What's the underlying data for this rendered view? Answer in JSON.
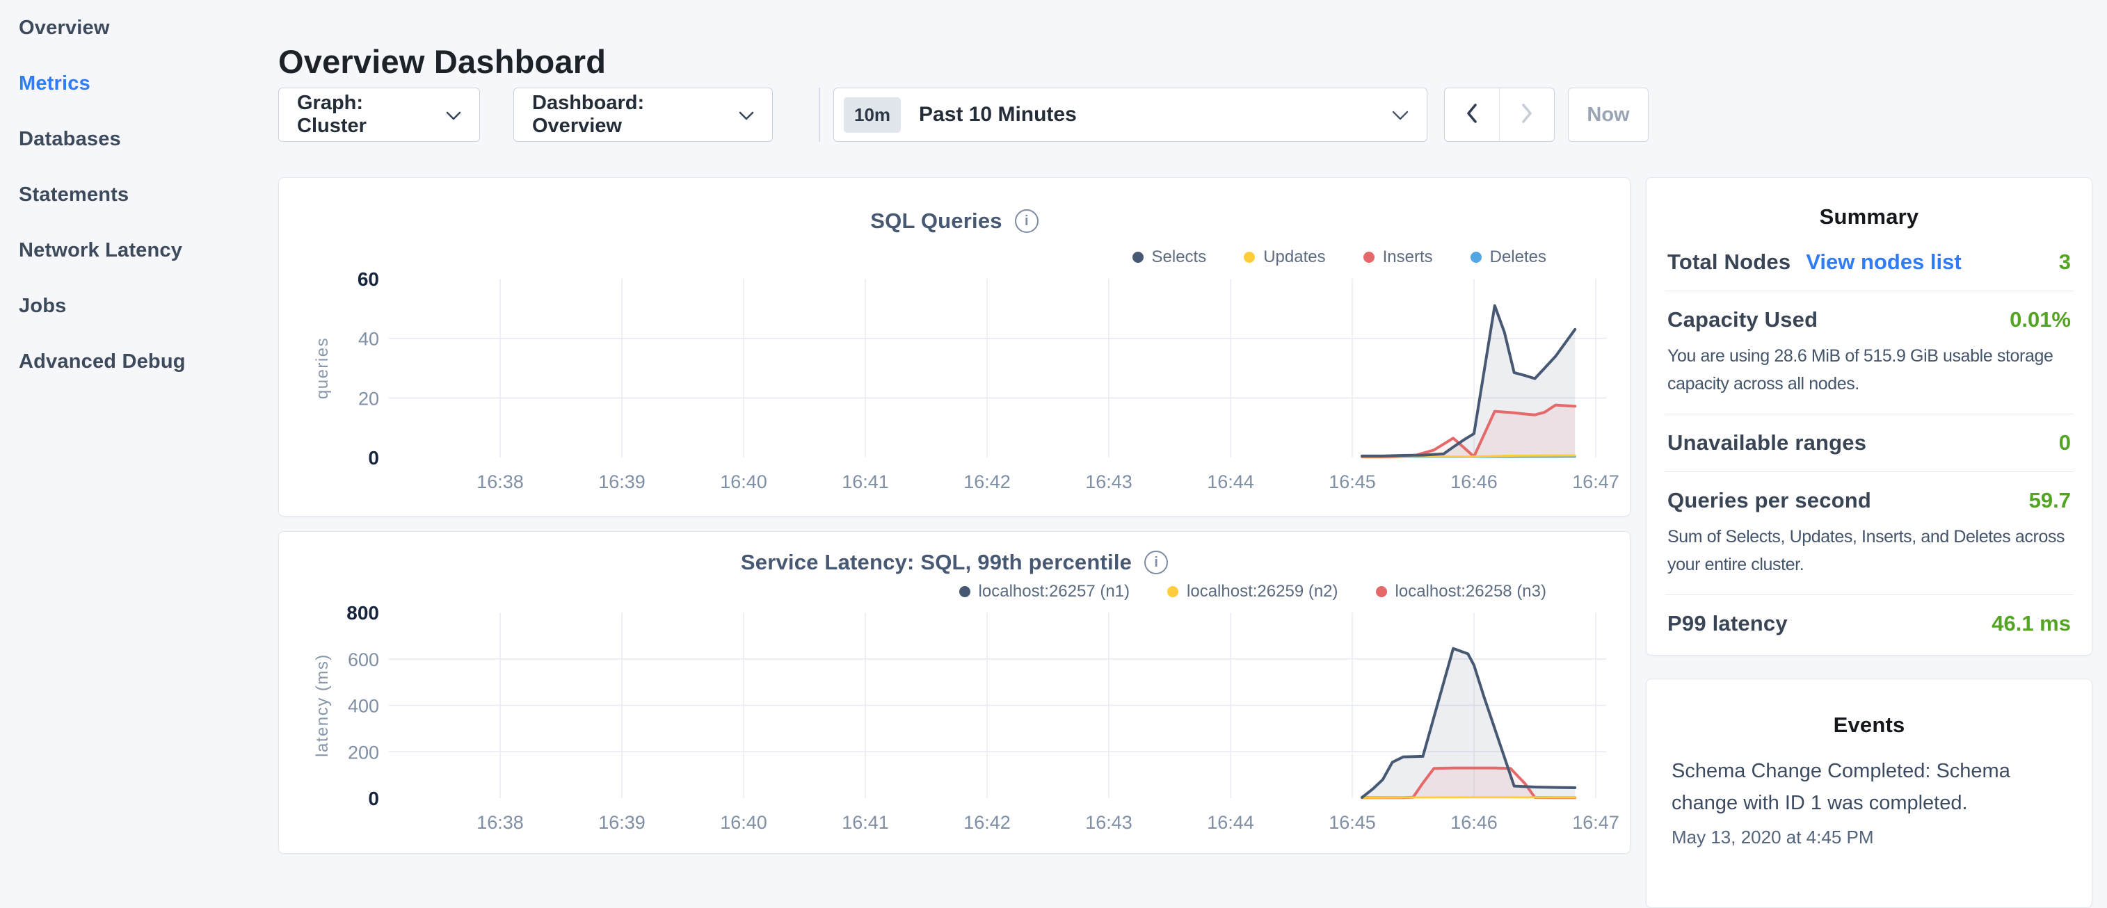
{
  "sidebar": {
    "items": [
      {
        "label": "Overview",
        "active": false
      },
      {
        "label": "Metrics",
        "active": true
      },
      {
        "label": "Databases",
        "active": false
      },
      {
        "label": "Statements",
        "active": false
      },
      {
        "label": "Network Latency",
        "active": false
      },
      {
        "label": "Jobs",
        "active": false
      },
      {
        "label": "Advanced Debug",
        "active": false
      }
    ]
  },
  "header": {
    "title": "Overview Dashboard"
  },
  "controls": {
    "graph_selector_label": "Graph: Cluster",
    "dashboard_selector_label": "Dashboard: Overview",
    "time_picker": {
      "badge": "10m",
      "label": "Past 10 Minutes"
    },
    "now_label": "Now"
  },
  "colors": {
    "accent_blue": "#2f7cf6",
    "value_green": "#54a423",
    "series_navy": "#475872",
    "series_yellow": "#ffcd3c",
    "series_red": "#e5696b",
    "series_blue": "#51a6e3"
  },
  "chart_data": [
    {
      "type": "area",
      "title": "SQL Queries",
      "ylabel": "queries",
      "ylim": [
        0,
        60
      ],
      "yticks": [
        0,
        20,
        40,
        60
      ],
      "xticks": [
        {
          "m": 38,
          "label": "16:38"
        },
        {
          "m": 39,
          "label": "16:39"
        },
        {
          "m": 40,
          "label": "16:40"
        },
        {
          "m": 41,
          "label": "16:41"
        },
        {
          "m": 42,
          "label": "16:42"
        },
        {
          "m": 43,
          "label": "16:43"
        },
        {
          "m": 44,
          "label": "16:44"
        },
        {
          "m": 45,
          "label": "16:45"
        },
        {
          "m": 46,
          "label": "16:46"
        },
        {
          "m": 47,
          "label": "16:47"
        }
      ],
      "legend_position": "top-right",
      "grid": true,
      "series": [
        {
          "name": "Selects",
          "color": "#475872",
          "fill": "rgba(71,88,114,0.10)",
          "width": 4,
          "points": [
            [
              45.08,
              0.5
            ],
            [
              45.25,
              0.5
            ],
            [
              45.42,
              0.7
            ],
            [
              45.58,
              0.8
            ],
            [
              45.75,
              1.2
            ],
            [
              45.83,
              3.5
            ],
            [
              45.92,
              6
            ],
            [
              46.0,
              8
            ],
            [
              46.17,
              51
            ],
            [
              46.25,
              42
            ],
            [
              46.33,
              28.5
            ],
            [
              46.42,
              27.5
            ],
            [
              46.5,
              26.5
            ],
            [
              46.58,
              30
            ],
            [
              46.67,
              34
            ],
            [
              46.75,
              38.5
            ],
            [
              46.83,
              43
            ]
          ]
        },
        {
          "name": "Updates",
          "color": "#ffcd3c",
          "fill": "none",
          "width": 3,
          "points": [
            [
              45.08,
              0.3
            ],
            [
              46.0,
              0.3
            ],
            [
              46.33,
              0.6
            ],
            [
              46.83,
              0.7
            ]
          ]
        },
        {
          "name": "Inserts",
          "color": "#e5696b",
          "fill": "rgba(229,105,107,0.09)",
          "width": 4,
          "points": [
            [
              45.08,
              0.2
            ],
            [
              45.33,
              0.2
            ],
            [
              45.5,
              0.5
            ],
            [
              45.67,
              2.5
            ],
            [
              45.83,
              6.5
            ],
            [
              46.0,
              0.3
            ],
            [
              46.17,
              15.5
            ],
            [
              46.33,
              15
            ],
            [
              46.42,
              14.6
            ],
            [
              46.5,
              14.3
            ],
            [
              46.58,
              15.2
            ],
            [
              46.67,
              17.6
            ],
            [
              46.75,
              17.4
            ],
            [
              46.83,
              17.2
            ]
          ]
        },
        {
          "name": "Deletes",
          "color": "#51a6e3",
          "fill": "none",
          "width": 3,
          "points": [
            [
              45.08,
              0.15
            ],
            [
              46.83,
              0.25
            ]
          ]
        }
      ]
    },
    {
      "type": "area",
      "title": "Service Latency: SQL, 99th percentile",
      "ylabel": "latency (ms)",
      "ylim": [
        0,
        800
      ],
      "yticks": [
        0,
        200,
        400,
        600,
        800
      ],
      "xticks": [
        {
          "m": 38,
          "label": "16:38"
        },
        {
          "m": 39,
          "label": "16:39"
        },
        {
          "m": 40,
          "label": "16:40"
        },
        {
          "m": 41,
          "label": "16:41"
        },
        {
          "m": 42,
          "label": "16:42"
        },
        {
          "m": 43,
          "label": "16:43"
        },
        {
          "m": 44,
          "label": "16:44"
        },
        {
          "m": 45,
          "label": "16:45"
        },
        {
          "m": 46,
          "label": "16:46"
        },
        {
          "m": 47,
          "label": "16:47"
        }
      ],
      "legend_position": "top-right",
      "grid": true,
      "series": [
        {
          "name": "localhost:26257 (n1)",
          "color": "#475872",
          "fill": "rgba(71,88,114,0.10)",
          "width": 4,
          "points": [
            [
              45.08,
              3
            ],
            [
              45.17,
              40
            ],
            [
              45.25,
              80
            ],
            [
              45.33,
              155
            ],
            [
              45.42,
              178
            ],
            [
              45.58,
              180
            ],
            [
              45.83,
              645
            ],
            [
              45.95,
              622
            ],
            [
              46.0,
              573
            ],
            [
              46.08,
              440
            ],
            [
              46.17,
              300
            ],
            [
              46.33,
              52
            ],
            [
              46.5,
              48
            ],
            [
              46.67,
              46
            ],
            [
              46.83,
              45
            ]
          ]
        },
        {
          "name": "localhost:26259 (n2)",
          "color": "#ffcd3c",
          "fill": "none",
          "width": 3,
          "points": [
            [
              45.08,
              2
            ],
            [
              45.5,
              3
            ],
            [
              46.0,
              4
            ],
            [
              46.83,
              3
            ]
          ]
        },
        {
          "name": "localhost:26258 (n3)",
          "color": "#e5696b",
          "fill": "rgba(229,105,107,0.09)",
          "width": 4,
          "points": [
            [
              45.08,
              2
            ],
            [
              45.42,
              2
            ],
            [
              45.5,
              4
            ],
            [
              45.58,
              65
            ],
            [
              45.67,
              128
            ],
            [
              45.83,
              130
            ],
            [
              46.17,
              130
            ],
            [
              46.3,
              128
            ],
            [
              46.42,
              62
            ],
            [
              46.5,
              3
            ],
            [
              46.67,
              2
            ],
            [
              46.83,
              2
            ]
          ]
        }
      ]
    }
  ],
  "summary_panel": {
    "title": "Summary",
    "rows": [
      {
        "label": "Total Nodes",
        "link": "View nodes list",
        "value": "3"
      },
      {
        "label": "Capacity Used",
        "value": "0.01%",
        "description": "You are using 28.6 MiB of 515.9 GiB usable storage capacity across all nodes."
      },
      {
        "label": "Unavailable ranges",
        "value": "0"
      },
      {
        "label": "Queries per second",
        "value": "59.7",
        "description": "Sum of Selects, Updates, Inserts, and Deletes across your entire cluster."
      },
      {
        "label": "P99 latency",
        "value": "46.1 ms"
      }
    ]
  },
  "events_panel": {
    "title": "Events",
    "items": [
      {
        "message": "Schema Change Completed: Schema change with ID 1 was completed.",
        "timestamp": "May 13, 2020 at 4:45 PM"
      }
    ]
  }
}
